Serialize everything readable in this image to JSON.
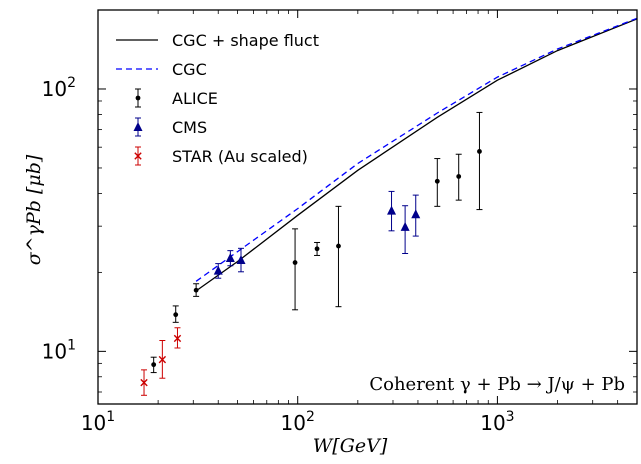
{
  "chart_data": {
    "type": "line",
    "title": "",
    "xlabel": "W[GeV]",
    "ylabel": "σ^γPb [μb]",
    "xscale": "log",
    "yscale": "log",
    "xlim": [
      10,
      5000
    ],
    "ylim": [
      6.3,
      200
    ],
    "xticks": [
      {
        "base": "10",
        "exp": "1",
        "value": 10
      },
      {
        "base": "10",
        "exp": "2",
        "value": 100
      },
      {
        "base": "10",
        "exp": "3",
        "value": 1000
      }
    ],
    "yticks": [
      {
        "base": "10",
        "exp": "1",
        "value": 10
      },
      {
        "base": "10",
        "exp": "2",
        "value": 100
      }
    ],
    "legend_position": "top-left",
    "annotation": "Coherent γ + Pb → J/ψ + Pb",
    "series": [
      {
        "name": "CGC + shape fluct",
        "kind": "line",
        "style": "solid",
        "color": "#000000",
        "x": [
          31,
          50,
          100,
          200,
          500,
          1000,
          2000,
          5000
        ],
        "y": [
          17,
          22,
          33,
          49,
          78,
          108,
          140,
          185
        ]
      },
      {
        "name": "CGC",
        "kind": "line",
        "style": "dashed",
        "color": "#0000ff",
        "x": [
          31,
          50,
          100,
          200,
          500,
          1000,
          2000,
          5000
        ],
        "y": [
          18.5,
          24,
          35,
          52,
          81,
          111,
          142,
          186
        ]
      },
      {
        "name": "ALICE",
        "kind": "errorbar",
        "marker": "circle",
        "color": "#000000",
        "points": [
          {
            "x": 19,
            "y": 8.9,
            "lo": 8.3,
            "hi": 9.5
          },
          {
            "x": 24.5,
            "y": 13.8,
            "lo": 12.9,
            "hi": 14.9
          },
          {
            "x": 31,
            "y": 17.1,
            "lo": 16.2,
            "hi": 18.1
          },
          {
            "x": 97,
            "y": 21.8,
            "lo": 14.4,
            "hi": 29.3
          },
          {
            "x": 125,
            "y": 24.6,
            "lo": 23.2,
            "hi": 26.0
          },
          {
            "x": 160,
            "y": 25.2,
            "lo": 14.8,
            "hi": 35.7
          },
          {
            "x": 500,
            "y": 44.5,
            "lo": 35.7,
            "hi": 54.3
          },
          {
            "x": 640,
            "y": 46.4,
            "lo": 37.7,
            "hi": 56.4
          },
          {
            "x": 813,
            "y": 57.8,
            "lo": 34.7,
            "hi": 81.4
          }
        ]
      },
      {
        "name": "CMS",
        "kind": "errorbar",
        "marker": "triangle",
        "color": "#00008b",
        "points": [
          {
            "x": 40,
            "y": 20.3,
            "lo": 19.0,
            "hi": 21.6
          },
          {
            "x": 46,
            "y": 22.7,
            "lo": 21.2,
            "hi": 24.2
          },
          {
            "x": 52,
            "y": 22.3,
            "lo": 20.1,
            "hi": 24.7
          },
          {
            "x": 295,
            "y": 34.4,
            "lo": 28.8,
            "hi": 40.7
          },
          {
            "x": 345,
            "y": 29.8,
            "lo": 23.6,
            "hi": 35.9
          },
          {
            "x": 390,
            "y": 33.3,
            "lo": 27.5,
            "hi": 39.4
          }
        ]
      },
      {
        "name": "STAR (Au scaled)",
        "kind": "errorbar",
        "marker": "x",
        "color": "#cc0000",
        "points": [
          {
            "x": 17,
            "y": 7.6,
            "lo": 6.8,
            "hi": 8.5
          },
          {
            "x": 21,
            "y": 9.3,
            "lo": 7.9,
            "hi": 11.0
          },
          {
            "x": 25,
            "y": 11.2,
            "lo": 10.3,
            "hi": 12.3
          }
        ]
      }
    ]
  }
}
